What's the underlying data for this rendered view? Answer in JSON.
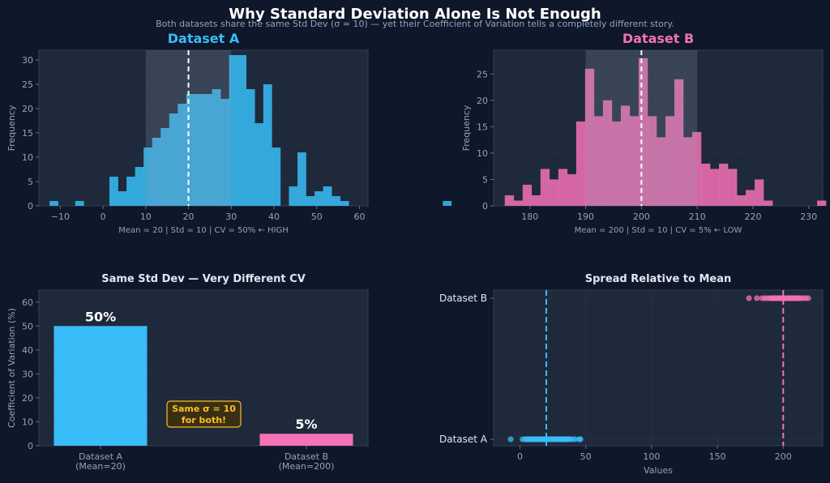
{
  "title": "Why Standard Deviation Alone Is Not Enough",
  "subtitle": "Both datasets share the same Std Dev (σ = 10) — yet their Coefficient of Variation tells a completely different story.",
  "colors": {
    "background": "#0f172a",
    "panel": "#1e293b",
    "grid": "#334155",
    "a": "#38bdf8",
    "b": "#f472b6",
    "note": "#fbbf24"
  },
  "chart_data": [
    {
      "type": "bar",
      "title": "Dataset A",
      "ylabel": "Frequency",
      "xlabel": "Mean = 20  |  Std = 10  |  CV = 50%  ← HIGH",
      "xlim": [
        -15,
        62
      ],
      "ylim": [
        0,
        32
      ],
      "xticks": [
        -10,
        0,
        10,
        20,
        30,
        40,
        50,
        60
      ],
      "yticks": [
        0,
        5,
        10,
        15,
        20,
        25,
        30
      ],
      "bin_start": -12.5,
      "bin_width": 2.0,
      "counts": [
        1,
        0,
        0,
        1,
        0,
        0,
        0,
        6,
        3,
        6,
        8,
        12,
        14,
        16,
        19,
        21,
        23,
        23,
        23,
        24,
        22,
        31,
        31,
        24,
        17,
        25,
        12,
        0,
        4,
        11,
        2,
        3,
        4,
        2,
        1,
        0,
        0,
        0,
        0,
        0,
        0,
        0,
        0,
        0,
        0,
        0,
        1
      ],
      "mean": 20,
      "band": [
        10,
        30
      ]
    },
    {
      "type": "bar",
      "title": "Dataset B",
      "ylabel": "Frequency",
      "xlabel": "Mean = 200  |  Std = 10  |  CV = 5%  ← LOW",
      "xlim": [
        173.5,
        232.5
      ],
      "ylim": [
        0,
        29.5
      ],
      "xticks": [
        180,
        190,
        200,
        210,
        220,
        230
      ],
      "yticks": [
        0,
        5,
        10,
        15,
        20,
        25
      ],
      "bin_start": 175.5,
      "bin_width": 1.6,
      "counts": [
        2,
        1,
        4,
        2,
        7,
        5,
        7,
        6,
        16,
        26,
        17,
        20,
        16,
        19,
        17,
        28,
        17,
        13,
        17,
        24,
        13,
        14,
        8,
        7,
        8,
        7,
        2,
        3,
        5,
        1,
        0,
        0,
        0,
        0,
        0,
        1
      ],
      "mean": 200,
      "band": [
        190,
        210
      ]
    },
    {
      "type": "bar",
      "title": "Same Std Dev — Very Different CV",
      "ylabel": "Coefficient of Variation (%)",
      "ylim": [
        0,
        65
      ],
      "yticks": [
        0,
        10,
        20,
        30,
        40,
        50,
        60
      ],
      "categories": [
        "Dataset A\n(Mean=20)",
        "Dataset B\n(Mean=200)"
      ],
      "values": [
        50,
        5
      ],
      "value_labels": [
        "50%",
        "5%"
      ],
      "annotation": "Same σ = 10\nfor both!"
    },
    {
      "type": "scatter",
      "title": "Spread Relative to Mean",
      "xlabel": "Values",
      "xlim": [
        -20,
        230
      ],
      "xticks": [
        0,
        50,
        100,
        150,
        200
      ],
      "categories": [
        "Dataset A",
        "Dataset B"
      ],
      "series": [
        {
          "category": "Dataset A",
          "mean": 20,
          "values": [
            -7,
            2,
            4,
            5,
            6,
            7,
            8,
            9,
            10,
            11,
            12,
            13,
            14,
            15,
            16,
            17,
            18,
            19,
            20,
            21,
            22,
            23,
            24,
            25,
            26,
            27,
            28,
            29,
            30,
            31,
            32,
            33,
            34,
            35,
            36,
            37,
            38,
            40,
            42,
            45,
            46
          ]
        },
        {
          "category": "Dataset B",
          "mean": 200,
          "values": [
            174,
            180,
            184,
            186,
            188,
            190,
            191,
            192,
            193,
            194,
            195,
            196,
            197,
            198,
            199,
            200,
            201,
            202,
            203,
            204,
            205,
            206,
            207,
            208,
            209,
            210,
            211,
            212,
            213,
            215,
            217,
            219
          ]
        }
      ]
    }
  ]
}
